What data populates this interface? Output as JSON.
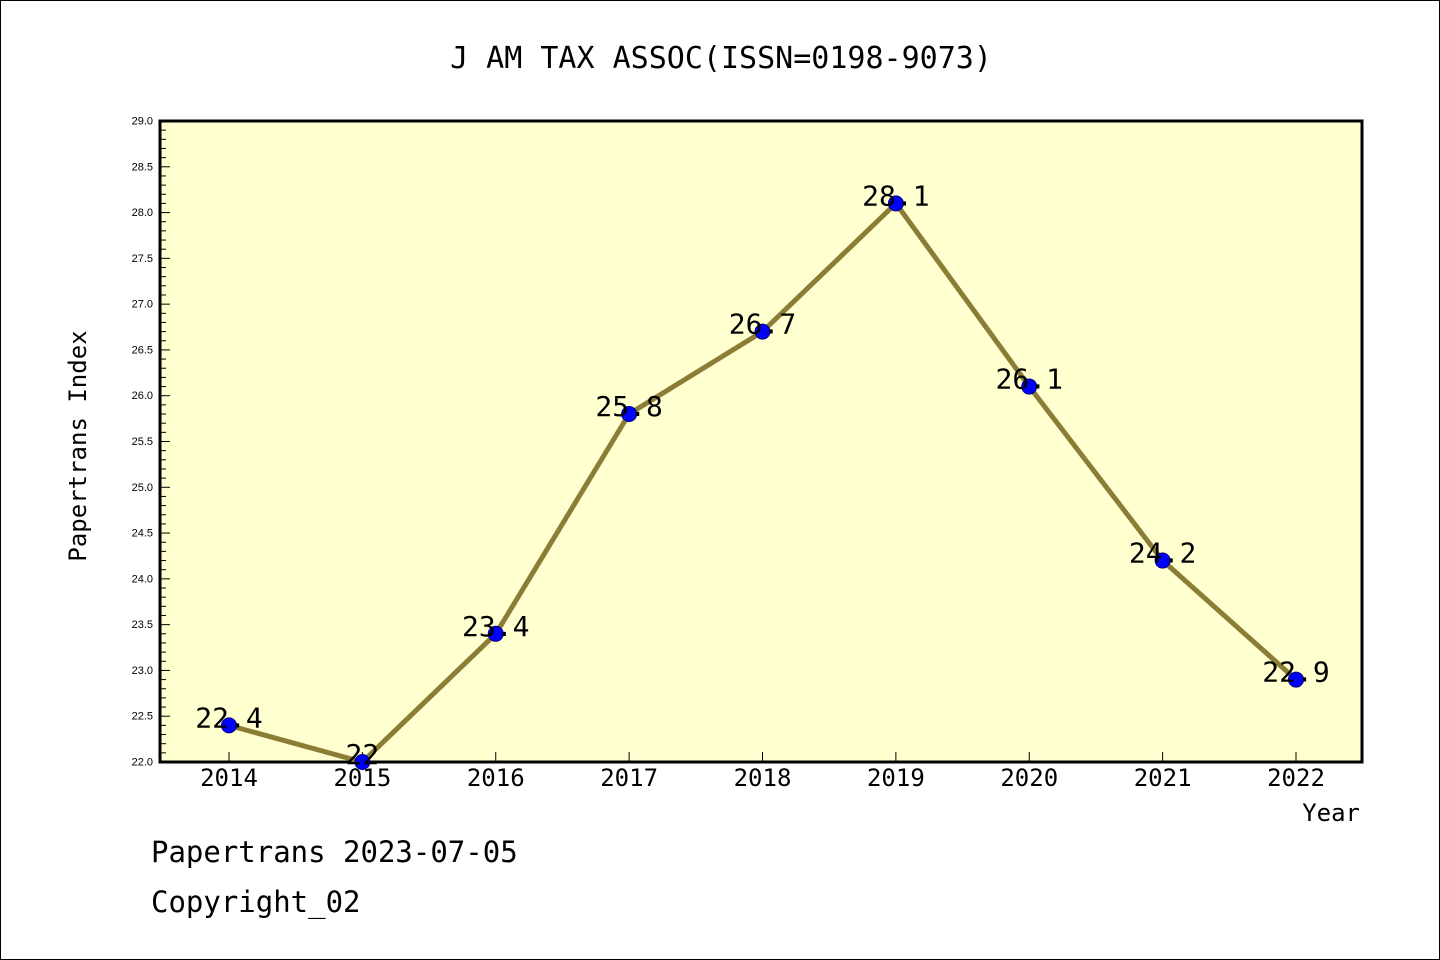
{
  "chart_data": {
    "type": "line",
    "title": "J AM TAX ASSOC(ISSN=0198-9073)",
    "xlabel": "Year",
    "ylabel": "Papertrans Index",
    "categories": [
      "2014",
      "2015",
      "2016",
      "2017",
      "2018",
      "2019",
      "2020",
      "2021",
      "2022"
    ],
    "values": [
      22.4,
      22,
      23.4,
      25.8,
      26.7,
      28.1,
      26.1,
      24.2,
      22.9
    ],
    "data_labels": [
      "22.4",
      "22",
      "23.4",
      "25.8",
      "26.7",
      "28.1",
      "26.1",
      "24.2",
      "22.9"
    ],
    "ylim": [
      22.0,
      29.0
    ],
    "yticks": [
      "22.0",
      "22.5",
      "23.0",
      "23.5",
      "24.0",
      "24.5",
      "25.0",
      "25.5",
      "26.0",
      "26.5",
      "27.0",
      "27.5",
      "28.0",
      "28.5",
      "29.0"
    ],
    "grid": false,
    "legend": "none",
    "colors": {
      "plot_background": "#FFFFD0",
      "line": "#8B7D35",
      "marker": "#0000FF",
      "marker_edge": "#000080",
      "axis": "#000000"
    }
  },
  "footer": {
    "line1": "Papertrans 2023-07-05",
    "line2": "Copyright_02"
  }
}
